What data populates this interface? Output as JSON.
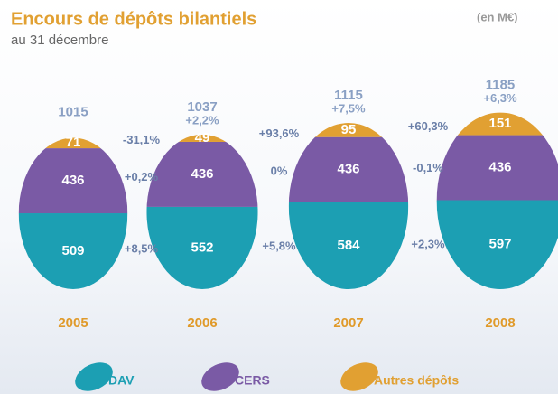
{
  "chart_data": {
    "type": "egg-stack",
    "title": "Encours de dépôts bilantiels",
    "subtitle": "au 31 décembre",
    "unit": "(en M€)",
    "categories": [
      "2005",
      "2006",
      "2007",
      "2008"
    ],
    "totals": [
      1015,
      1037,
      1115,
      1185
    ],
    "total_growth": [
      null,
      "+2,2%",
      "+7,5%",
      "+6,3%"
    ],
    "series": [
      {
        "name": "DAV",
        "color": "#1c9fb3",
        "values": [
          509,
          552,
          584,
          597
        ],
        "growth": [
          "+8,5%",
          "+5,8%",
          "+2,3%"
        ]
      },
      {
        "name": "CERS",
        "color": "#7a5aa5",
        "values": [
          436,
          436,
          436,
          436
        ],
        "growth": [
          "+0,2%",
          "0%",
          "-0,1%"
        ]
      },
      {
        "name": "Autres dépôts",
        "color": "#e1a032",
        "values": [
          71,
          49,
          95,
          151
        ],
        "growth": [
          "-31,1%",
          "+93,6%",
          "+60,3%"
        ]
      }
    ]
  }
}
